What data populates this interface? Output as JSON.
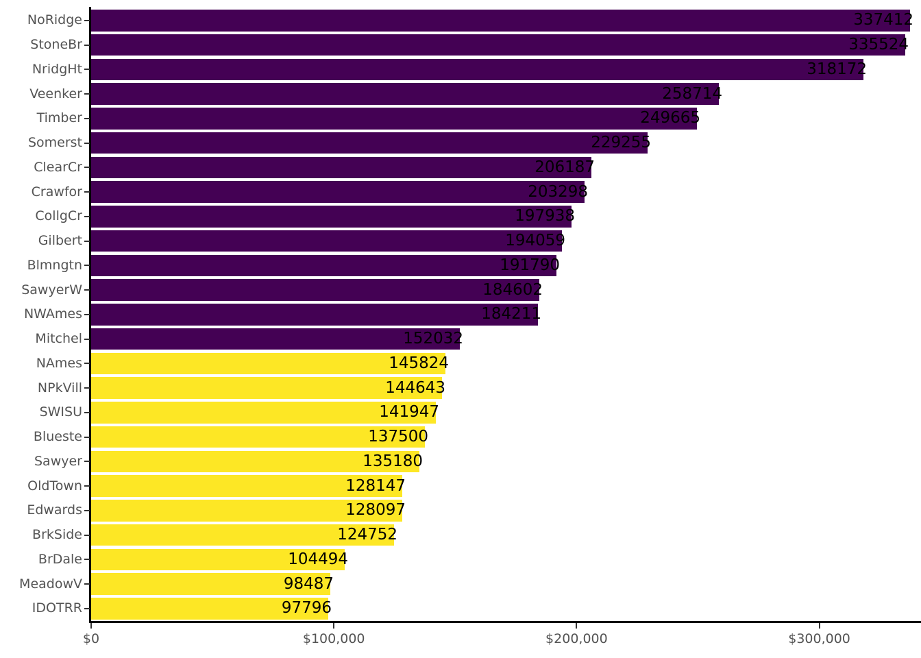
{
  "chart_data": {
    "type": "bar",
    "orientation": "horizontal",
    "title": "",
    "xlabel": "",
    "ylabel": "",
    "grid": false,
    "legend": null,
    "categories": [
      "NoRidge",
      "StoneBr",
      "NridgHt",
      "Veenker",
      "Timber",
      "Somerst",
      "ClearCr",
      "Crawfor",
      "CollgCr",
      "Gilbert",
      "Blmngtn",
      "SawyerW",
      "NWAmes",
      "Mitchel",
      "NAmes",
      "NPkVill",
      "SWISU",
      "Blueste",
      "Sawyer",
      "OldTown",
      "Edwards",
      "BrkSide",
      "BrDale",
      "MeadowV",
      "IDOTRR"
    ],
    "values": [
      337412,
      335524,
      318172,
      258714,
      249665,
      229255,
      206187,
      203298,
      197938,
      194059,
      191790,
      184602,
      184211,
      152032,
      145824,
      144643,
      141947,
      137500,
      135180,
      128147,
      128097,
      124752,
      104494,
      98487,
      97796
    ],
    "bar_labels": [
      "337412",
      "335524",
      "318172",
      "258714",
      "249665",
      "229255",
      "206187",
      "203298",
      "197938",
      "194059",
      "191790",
      "184602",
      "184211",
      "152032",
      "145824",
      "144643",
      "141947",
      "137500",
      "135180",
      "128147",
      "128097",
      "124752",
      "104494",
      "98487",
      "97796"
    ],
    "color_threshold": 150000,
    "color_above_threshold": "#440154",
    "color_below_threshold": "#FDE725",
    "value_label_color": "#000000",
    "tick_label_color": "#545454",
    "axis_line_color": "#000000",
    "x_ticks": [
      {
        "value": 0,
        "label": "$0"
      },
      {
        "value": 100000,
        "label": "$100,000"
      },
      {
        "value": 200000,
        "label": "$200,000"
      },
      {
        "value": 300000,
        "label": "$300,000"
      }
    ],
    "xlim": [
      0,
      341900
    ]
  }
}
